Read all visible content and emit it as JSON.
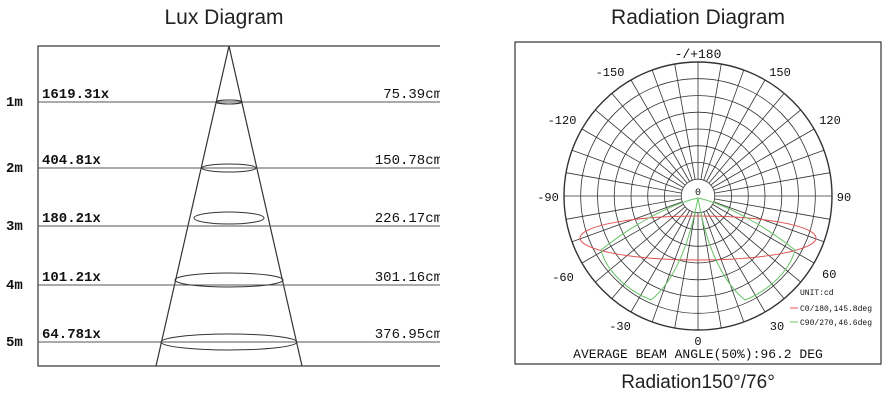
{
  "lux": {
    "title": "Lux Diagram",
    "rows": [
      {
        "distance": "1m",
        "lux": "1619.31x",
        "diameter": "75.39cm"
      },
      {
        "distance": "2m",
        "lux": "404.81x",
        "diameter": "150.78cm"
      },
      {
        "distance": "3m",
        "lux": "180.21x",
        "diameter": "226.17cm"
      },
      {
        "distance": "4m",
        "lux": "101.21x",
        "diameter": "301.16cm"
      },
      {
        "distance": "5m",
        "lux": "64.781x",
        "diameter": "376.95cm"
      }
    ]
  },
  "radiation": {
    "title": "Radiation Diagram",
    "angle_labels": {
      "top": "-/+180",
      "n150": "-150",
      "p150": "150",
      "n120": "-120",
      "p120": "120",
      "n90": "-90",
      "p90": "90",
      "n60": "-60",
      "p60": "60",
      "n30": "-30",
      "p30": "30",
      "bottom": "0",
      "center": "0"
    },
    "legend": {
      "unit": "UNIT:cd",
      "c0": "C0/180,145.8deg",
      "c90": "C90/270,46.6deg"
    },
    "footer": "AVERAGE BEAM ANGLE(50%):96.2 DEG",
    "caption": "Radiation150°/76°",
    "colors": {
      "c0": "#e05050",
      "c90": "#6ac46a"
    }
  }
}
